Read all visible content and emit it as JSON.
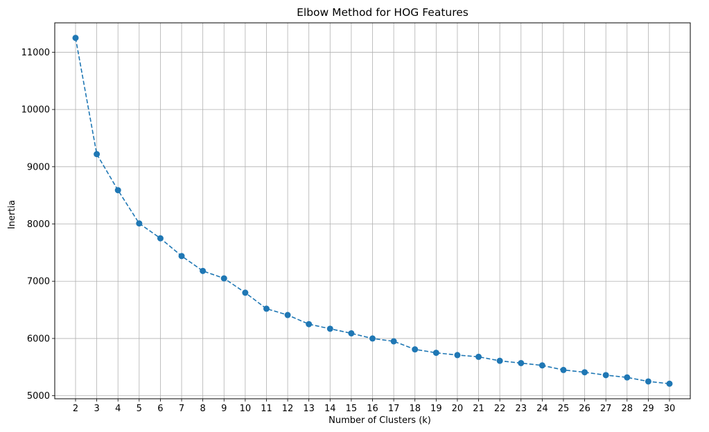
{
  "chart_data": {
    "type": "line",
    "title": "Elbow Method for HOG Features",
    "xlabel": "Number of Clusters (k)",
    "ylabel": "Inertia",
    "x": [
      2,
      3,
      4,
      5,
      6,
      7,
      8,
      9,
      10,
      11,
      12,
      13,
      14,
      15,
      16,
      17,
      18,
      19,
      20,
      21,
      22,
      23,
      24,
      25,
      26,
      27,
      28,
      29,
      30
    ],
    "series": [
      {
        "values": [
          11250,
          9220,
          8590,
          8010,
          7750,
          7440,
          7180,
          7050,
          6800,
          6520,
          6410,
          6250,
          6170,
          6090,
          6000,
          5950,
          5810,
          5750,
          5710,
          5680,
          5610,
          5570,
          5530,
          5450,
          5410,
          5360,
          5320,
          5250,
          5210
        ]
      }
    ],
    "xlim": [
      1.02,
      30.98
    ],
    "ylim": [
      4947,
      11513
    ],
    "yticks": [
      5000,
      6000,
      7000,
      8000,
      9000,
      10000,
      11000
    ],
    "grid": true,
    "line_style": "dashed",
    "marker": "circle",
    "color": "#1f77b4"
  }
}
